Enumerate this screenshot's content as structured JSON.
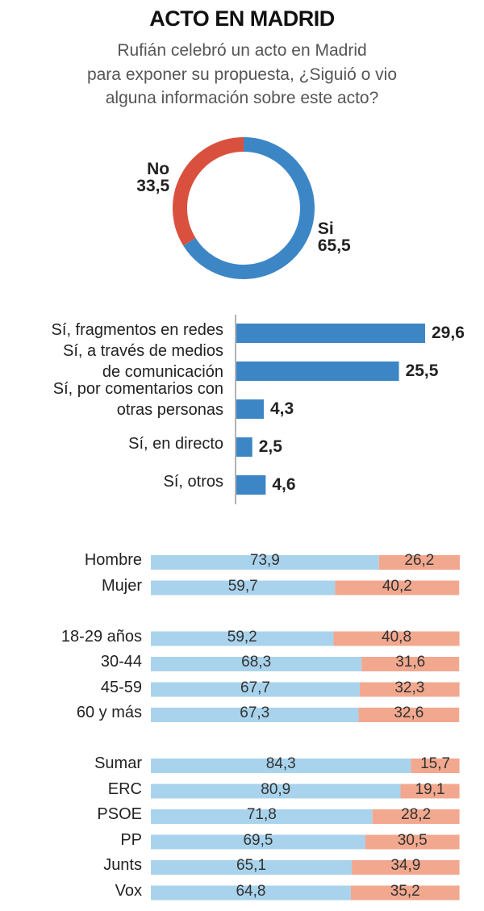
{
  "chart_data": [
    {
      "type": "donut",
      "title": "ACTO EN MADRID",
      "subtitle": "Rufián celebró un acto en Madrid\npara exponer su propuesta, ¿Siguió o vio\nalguna información sobre este acto?",
      "categories": [
        "Si",
        "No"
      ],
      "values": [
        65.5,
        33.5
      ],
      "value_labels": [
        "65,5",
        "33,5"
      ],
      "colors": [
        "#3d86c6",
        "#d9503f"
      ]
    },
    {
      "type": "hbar",
      "categories": [
        "Sí, fragmentos en redes",
        "Sí, a través de medios\nde comunicación",
        "Sí, por comentarios con\notras personas",
        "Sí, en directo",
        "Sí, otros"
      ],
      "values": [
        29.6,
        25.5,
        4.3,
        2.5,
        4.6
      ],
      "value_labels": [
        "29,6",
        "25,5",
        "4,3",
        "2,5",
        "4,6"
      ],
      "color": "#3d86c6"
    },
    {
      "type": "stacked_hbar",
      "categories": [
        "Hombre",
        "Mujer",
        null,
        "18-29 años",
        "30-44",
        "45-59",
        "60 y más",
        null,
        "Sumar",
        "ERC",
        "PSOE",
        "PP",
        "Junts",
        "Vox"
      ],
      "series": [
        {
          "color": "#a9d3ec",
          "values": [
            73.9,
            59.7,
            null,
            59.2,
            68.3,
            67.7,
            67.3,
            null,
            84.3,
            80.9,
            71.8,
            69.5,
            65.1,
            64.8
          ],
          "value_labels": [
            "73,9",
            "59,7",
            null,
            "59,2",
            "68,3",
            "67,7",
            "67,3",
            null,
            "84,3",
            "80,9",
            "71,8",
            "69,5",
            "65,1",
            "64,8"
          ]
        },
        {
          "color": "#f2a88e",
          "values": [
            26.2,
            40.2,
            null,
            40.8,
            31.6,
            32.3,
            32.6,
            null,
            15.7,
            19.1,
            28.2,
            30.5,
            34.9,
            35.2
          ],
          "value_labels": [
            "26,2",
            "40,2",
            null,
            "40,8",
            "31,6",
            "32,3",
            "32,6",
            null,
            "15,7",
            "19,1",
            "28,2",
            "30,5",
            "34,9",
            "35,2"
          ]
        }
      ]
    }
  ]
}
